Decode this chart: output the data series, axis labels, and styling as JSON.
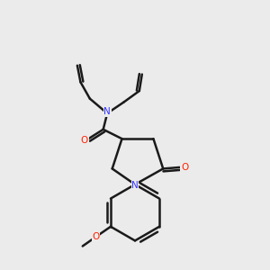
{
  "bg_color": "#ebebeb",
  "bond_color": "#1a1a1a",
  "N_color": "#3333ff",
  "O_color": "#ff2200",
  "line_width": 1.8,
  "fig_width": 3.0,
  "fig_height": 3.0,
  "dpi": 100,
  "xlim": [
    0,
    10
  ],
  "ylim": [
    0,
    10
  ]
}
